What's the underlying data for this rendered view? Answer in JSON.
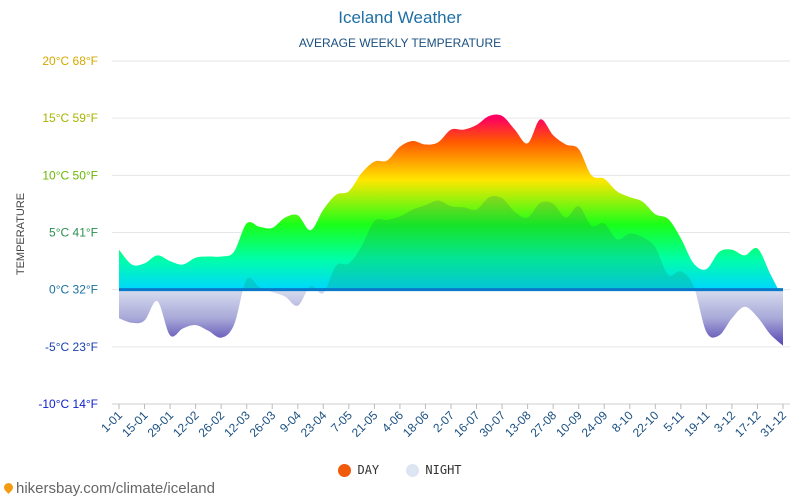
{
  "chart_data": {
    "type": "area",
    "title": "Iceland Weather",
    "subtitle": "AVERAGE WEEKLY TEMPERATURE",
    "ylabel": "TEMPERATURE",
    "xlabel": "",
    "ylim": [
      -10,
      20
    ],
    "grid": true,
    "y_ticks": [
      {
        "value": 20,
        "label": "20°C 68°F",
        "color": "#d4a900"
      },
      {
        "value": 15,
        "label": "15°C 59°F",
        "color": "#a8b400"
      },
      {
        "value": 10,
        "label": "10°C 50°F",
        "color": "#6ab800"
      },
      {
        "value": 5,
        "label": "5°C 41°F",
        "color": "#2a8f50"
      },
      {
        "value": 0,
        "label": "0°C 32°F",
        "color": "#1a6fa0"
      },
      {
        "value": -5,
        "label": "-5°C 23°F",
        "color": "#1a3fb0"
      },
      {
        "value": -10,
        "label": "-10°C 14°F",
        "color": "#1020d0"
      }
    ],
    "x_tick_labels": [
      "1-01",
      "15-01",
      "29-01",
      "12-02",
      "26-02",
      "12-03",
      "26-03",
      "9-04",
      "23-04",
      "7-05",
      "21-05",
      "4-06",
      "18-06",
      "2-07",
      "16-07",
      "30-07",
      "13-08",
      "27-08",
      "10-09",
      "24-09",
      "8-10",
      "22-10",
      "5-11",
      "19-11",
      "3-12",
      "17-12",
      "31-12"
    ],
    "series": [
      {
        "name": "DAY",
        "color": "#f05a0a",
        "values": [
          3.5,
          2.2,
          2.3,
          3.0,
          2.5,
          2.2,
          2.8,
          2.9,
          2.9,
          3.3,
          5.8,
          5.5,
          5.4,
          6.3,
          6.5,
          5.2,
          7.0,
          8.3,
          8.6,
          10.2,
          11.2,
          11.3,
          12.5,
          13.0,
          12.7,
          12.9,
          14.0,
          14.0,
          14.4,
          15.2,
          15.2,
          14.0,
          12.8,
          14.9,
          13.5,
          12.7,
          12.3,
          10.0,
          9.7,
          8.6,
          8.1,
          7.7,
          6.6,
          6.2,
          4.5,
          2.3,
          1.8,
          3.3,
          3.5,
          3.0,
          3.6,
          1.4,
          -0.8
        ]
      },
      {
        "name": "NIGHT",
        "color": "#dde5f2",
        "values": [
          -2.5,
          -2.9,
          -2.7,
          -1.0,
          -4.0,
          -3.4,
          -3.1,
          -3.6,
          -4.2,
          -3.1,
          0.9,
          0.2,
          -0.2,
          -0.6,
          -1.4,
          0.3,
          -0.3,
          2.1,
          2.3,
          3.8,
          6.0,
          6.1,
          6.4,
          7.0,
          7.4,
          7.8,
          7.3,
          7.2,
          7.0,
          8.1,
          8.0,
          6.8,
          6.3,
          7.6,
          7.5,
          6.3,
          7.3,
          5.6,
          5.8,
          4.4,
          4.9,
          4.6,
          3.7,
          1.3,
          1.6,
          0.3,
          -3.7,
          -4.0,
          -2.5,
          -1.5,
          -2.4,
          -3.9,
          -4.9
        ]
      }
    ]
  },
  "source": "hikersbay.com/climate/iceland",
  "source_icon": "map-pin-icon"
}
